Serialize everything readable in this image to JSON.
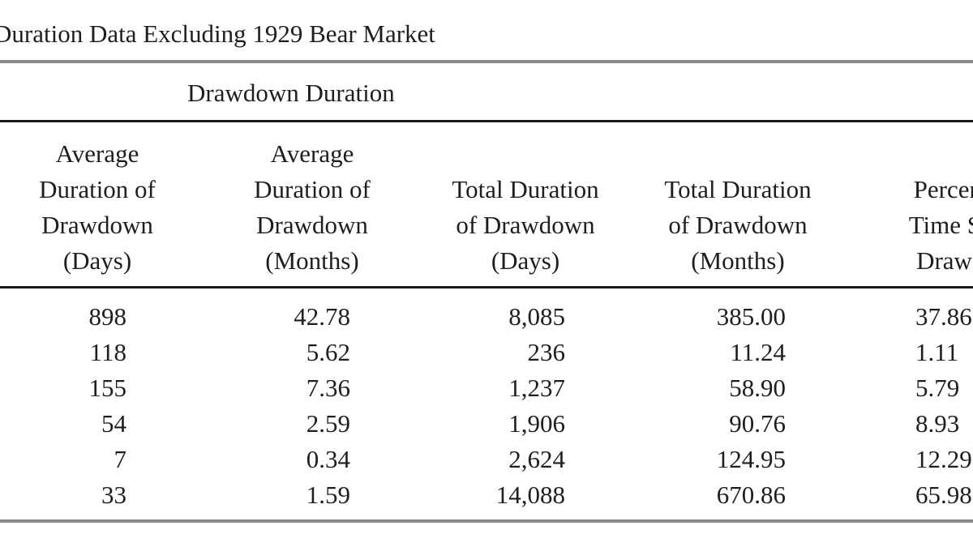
{
  "title": "Duration Data Excluding 1929 Bear Market",
  "group_heading": "Drawdown Duration",
  "columns": [
    {
      "lines": [
        "Average",
        "Duration of",
        "Drawdown",
        "(Days)"
      ]
    },
    {
      "lines": [
        "Average",
        "Duration of",
        "Drawdown",
        "(Months)"
      ]
    },
    {
      "lines": [
        "",
        "Total Duration",
        "of Drawdown",
        "(Days)"
      ]
    },
    {
      "lines": [
        "",
        "Total Duration",
        "of Drawdown",
        "(Months)"
      ]
    },
    {
      "lines": [
        "",
        "Percenta",
        "Time Spe",
        "Drawdo"
      ]
    }
  ],
  "rows": [
    [
      "898",
      "42.78",
      "8,085",
      "385.00",
      "37.86"
    ],
    [
      "118",
      "5.62",
      "236",
      "11.24",
      "1.11"
    ],
    [
      "155",
      "7.36",
      "1,237",
      "58.90",
      "5.79"
    ],
    [
      "54",
      "2.59",
      "1,906",
      "90.76",
      "8.93"
    ],
    [
      "7",
      "0.34",
      "2,624",
      "124.95",
      "12.29"
    ],
    [
      "33",
      "1.59",
      "14,088",
      "670.86",
      "65.98"
    ]
  ]
}
